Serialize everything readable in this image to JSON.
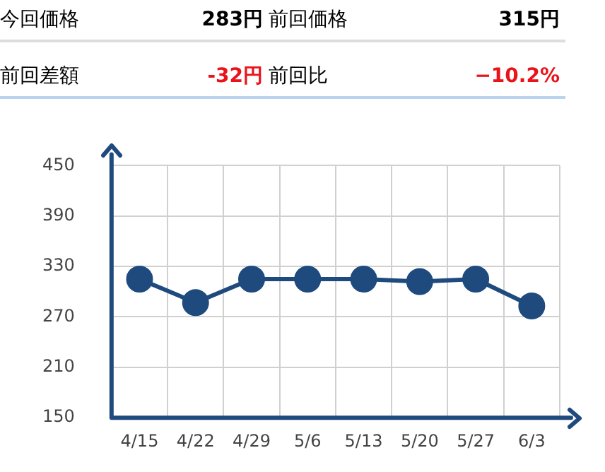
{
  "chart_data": {
    "type": "line",
    "annotations": [
      "今回価格",
      "283円",
      "前回価格",
      "315円",
      "前回差額",
      "-32円",
      "前回比",
      "−10.2%"
    ],
    "categories": [
      "4/15",
      "4/22",
      "4/29",
      "5/6",
      "5/13",
      "5/20",
      "5/27",
      "6/3"
    ],
    "series": [
      {
        "color": "#1f4a7e",
        "values": [
          315,
          287,
          315,
          315,
          315,
          312,
          315,
          283
        ]
      }
    ],
    "ylim": [
      150,
      450
    ],
    "yticks": [
      150,
      210,
      270,
      330,
      390,
      450
    ],
    "grid": true,
    "legend": false,
    "marker": "circle",
    "line_style": "solid"
  }
}
